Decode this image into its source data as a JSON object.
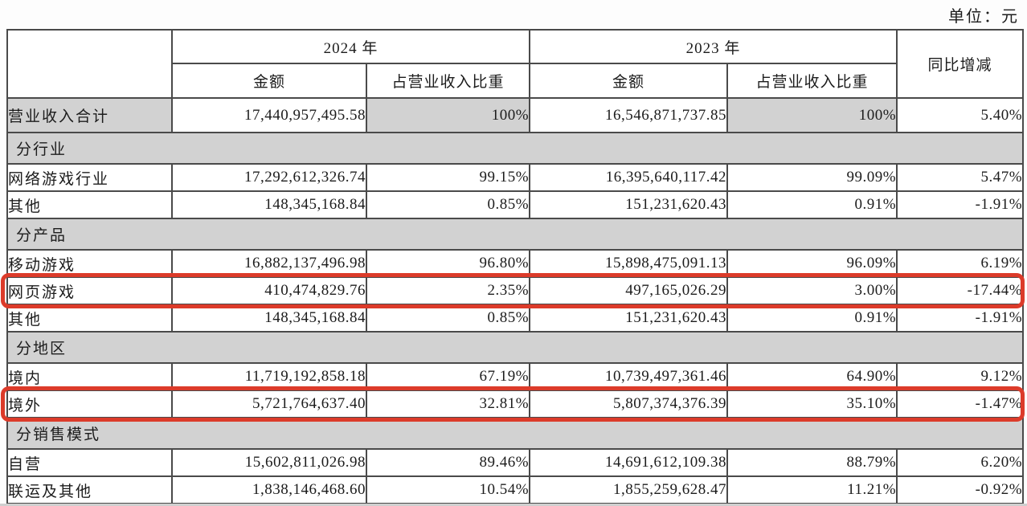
{
  "unit_label": "单位：元",
  "colors": {
    "header_bg": "#d2d2d2",
    "highlight_border": "#dc3b2a",
    "table_border": "#4a4a4a"
  },
  "table": {
    "headers": {
      "year_2024": "2024 年",
      "year_2023": "2023 年",
      "amount": "金额",
      "share": "占营业收入比重",
      "yoy": "同比增减"
    },
    "rows": [
      {
        "type": "total",
        "label": "营业收入合计",
        "amount_2024": "17,440,957,495.58",
        "share_2024": "100%",
        "amount_2023": "16,546,871,737.85",
        "share_2023": "100%",
        "yoy": "5.40%"
      },
      {
        "type": "section",
        "label": "分行业"
      },
      {
        "type": "data",
        "label": "网络游戏行业",
        "amount_2024": "17,292,612,326.74",
        "share_2024": "99.15%",
        "amount_2023": "16,395,640,117.42",
        "share_2023": "99.09%",
        "yoy": "5.47%"
      },
      {
        "type": "data",
        "label": "其他",
        "amount_2024": "148,345,168.84",
        "share_2024": "0.85%",
        "amount_2023": "151,231,620.43",
        "share_2023": "0.91%",
        "yoy": "-1.91%"
      },
      {
        "type": "section",
        "label": "分产品"
      },
      {
        "type": "data",
        "label": "移动游戏",
        "amount_2024": "16,882,137,496.98",
        "share_2024": "96.80%",
        "amount_2023": "15,898,475,091.13",
        "share_2023": "96.09%",
        "yoy": "6.19%"
      },
      {
        "type": "data",
        "label": "网页游戏",
        "amount_2024": "410,474,829.76",
        "share_2024": "2.35%",
        "amount_2023": "497,165,026.29",
        "share_2023": "3.00%",
        "yoy": "-17.44%",
        "highlighted": true
      },
      {
        "type": "data",
        "label": "其他",
        "amount_2024": "148,345,168.84",
        "share_2024": "0.85%",
        "amount_2023": "151,231,620.43",
        "share_2023": "0.91%",
        "yoy": "-1.91%"
      },
      {
        "type": "section",
        "label": "分地区"
      },
      {
        "type": "data",
        "label": "境内",
        "amount_2024": "11,719,192,858.18",
        "share_2024": "67.19%",
        "amount_2023": "10,739,497,361.46",
        "share_2023": "64.90%",
        "yoy": "9.12%"
      },
      {
        "type": "data",
        "label": "境外",
        "amount_2024": "5,721,764,637.40",
        "share_2024": "32.81%",
        "amount_2023": "5,807,374,376.39",
        "share_2023": "35.10%",
        "yoy": "-1.47%",
        "highlighted": true
      },
      {
        "type": "section",
        "label": "分销售模式"
      },
      {
        "type": "data",
        "label": "自营",
        "amount_2024": "15,602,811,026.98",
        "share_2024": "89.46%",
        "amount_2023": "14,691,612,109.38",
        "share_2023": "88.79%",
        "yoy": "6.20%"
      },
      {
        "type": "data",
        "label": "联运及其他",
        "amount_2024": "1,838,146,468.60",
        "share_2024": "10.54%",
        "amount_2023": "1,855,259,628.47",
        "share_2023": "11.21%",
        "yoy": "-0.92%"
      }
    ]
  }
}
